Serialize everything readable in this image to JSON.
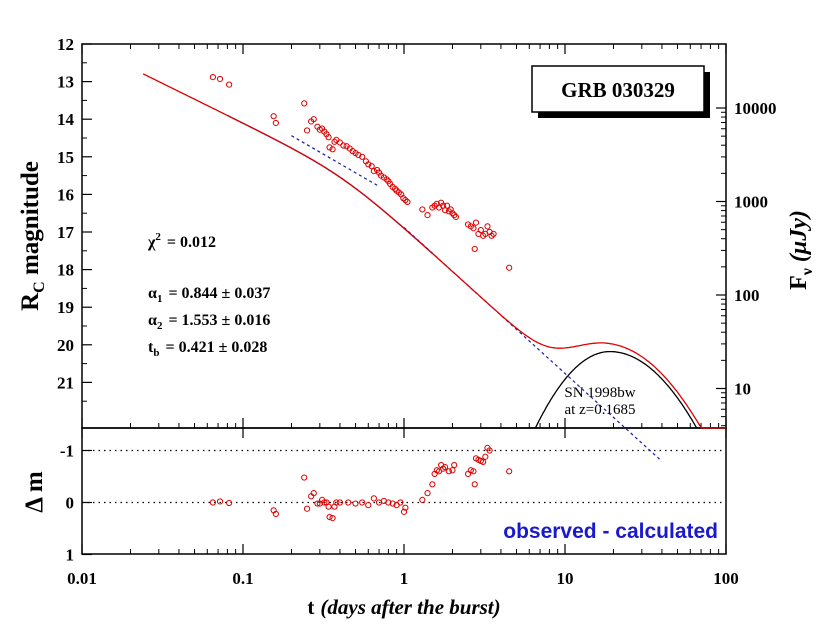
{
  "chart_data": {
    "type": "scatter",
    "title": "GRB 030329",
    "xlabel_main": "t",
    "xlabel_italic": "(days after the burst)",
    "x_ticks": [
      "0.01",
      "0.1",
      "1",
      "10",
      "100"
    ],
    "x_log": true,
    "xlim": [
      0.01,
      100
    ],
    "top_panel": {
      "ylabel_main": "R",
      "ylabel_sub": "C",
      "ylabel_rest": " magnitude",
      "ylim": [
        12,
        22
      ],
      "y_inverted": true,
      "y_ticks": [
        "12",
        "13",
        "14",
        "15",
        "16",
        "17",
        "18",
        "19",
        "20",
        "21"
      ],
      "right_label_main": "F",
      "right_label_sub": "ν",
      "right_label_rest": "(μJy)",
      "right_ticks": [
        "10000",
        "1000",
        "100",
        "10"
      ],
      "stats": {
        "chi2_sym": "χ",
        "chi2_sup": "2",
        "chi2_val": "= 0.012",
        "a1_sym": "α",
        "a1_sub": "1",
        "a1_val": "= 0.844 ± 0.037",
        "a2_sym": "α",
        "a2_sub": "2",
        "a2_val": "= 1.553 ± 0.016",
        "tb_sym": "t",
        "tb_sub": "b",
        "tb_val": "= 0.421 ± 0.028"
      },
      "sn_label_1": "SN 1998bw",
      "sn_label_2": "at z=0.1685",
      "observed_points": [
        [
          0.065,
          12.88
        ],
        [
          0.072,
          12.93
        ],
        [
          0.082,
          13.08
        ],
        [
          0.155,
          13.92
        ],
        [
          0.16,
          14.1
        ],
        [
          0.24,
          13.58
        ],
        [
          0.25,
          14.3
        ],
        [
          0.265,
          14.06
        ],
        [
          0.275,
          14.0
        ],
        [
          0.29,
          14.2
        ],
        [
          0.3,
          14.28
        ],
        [
          0.31,
          14.25
        ],
        [
          0.32,
          14.33
        ],
        [
          0.33,
          14.4
        ],
        [
          0.34,
          14.48
        ],
        [
          0.345,
          14.75
        ],
        [
          0.36,
          14.8
        ],
        [
          0.37,
          14.6
        ],
        [
          0.38,
          14.55
        ],
        [
          0.4,
          14.62
        ],
        [
          0.42,
          14.7
        ],
        [
          0.44,
          14.72
        ],
        [
          0.46,
          14.78
        ],
        [
          0.48,
          14.85
        ],
        [
          0.5,
          14.9
        ],
        [
          0.52,
          14.95
        ],
        [
          0.55,
          15.0
        ],
        [
          0.58,
          15.12
        ],
        [
          0.6,
          15.2
        ],
        [
          0.63,
          15.25
        ],
        [
          0.65,
          15.38
        ],
        [
          0.68,
          15.35
        ],
        [
          0.7,
          15.42
        ],
        [
          0.72,
          15.5
        ],
        [
          0.75,
          15.55
        ],
        [
          0.78,
          15.6
        ],
        [
          0.8,
          15.65
        ],
        [
          0.82,
          15.72
        ],
        [
          0.85,
          15.8
        ],
        [
          0.88,
          15.85
        ],
        [
          0.9,
          15.9
        ],
        [
          0.93,
          15.95
        ],
        [
          0.96,
          16.0
        ],
        [
          0.99,
          16.1
        ],
        [
          1.02,
          16.15
        ],
        [
          1.05,
          16.2
        ],
        [
          1.3,
          16.4
        ],
        [
          1.4,
          16.55
        ],
        [
          1.5,
          16.35
        ],
        [
          1.55,
          16.3
        ],
        [
          1.6,
          16.25
        ],
        [
          1.65,
          16.35
        ],
        [
          1.7,
          16.22
        ],
        [
          1.75,
          16.3
        ],
        [
          1.8,
          16.42
        ],
        [
          1.85,
          16.3
        ],
        [
          1.9,
          16.45
        ],
        [
          1.95,
          16.4
        ],
        [
          2.0,
          16.5
        ],
        [
          2.05,
          16.55
        ],
        [
          2.1,
          16.6
        ],
        [
          2.5,
          16.8
        ],
        [
          2.6,
          16.85
        ],
        [
          2.7,
          16.9
        ],
        [
          2.8,
          16.75
        ],
        [
          2.9,
          17.05
        ],
        [
          3.0,
          16.95
        ],
        [
          3.1,
          17.1
        ],
        [
          3.2,
          17.05
        ],
        [
          3.3,
          16.85
        ],
        [
          3.4,
          17.0
        ],
        [
          3.5,
          17.1
        ],
        [
          3.6,
          17.05
        ],
        [
          2.75,
          17.45
        ],
        [
          4.5,
          17.95
        ]
      ],
      "fit_curve_color": "#e00000",
      "line_color": "#1a1aa8",
      "sn_curve_color": "#000000"
    },
    "bottom_panel": {
      "ylabel": "Δ m",
      "ylim": [
        1.4,
        -1.4
      ],
      "y_ticks": [
        "-1",
        "0",
        "1"
      ],
      "dotted_levels": [
        -1,
        0
      ],
      "label": "observed - calculated",
      "label_color": "#1a1acc",
      "residuals": [
        [
          0.065,
          0.0
        ],
        [
          0.072,
          -0.02
        ],
        [
          0.082,
          0.01
        ],
        [
          0.155,
          0.15
        ],
        [
          0.16,
          0.22
        ],
        [
          0.24,
          -0.48
        ],
        [
          0.25,
          0.12
        ],
        [
          0.265,
          -0.12
        ],
        [
          0.275,
          -0.18
        ],
        [
          0.29,
          0.02
        ],
        [
          0.3,
          0.02
        ],
        [
          0.31,
          -0.05
        ],
        [
          0.32,
          0.0
        ],
        [
          0.33,
          0.0
        ],
        [
          0.34,
          0.08
        ],
        [
          0.345,
          0.28
        ],
        [
          0.36,
          0.3
        ],
        [
          0.37,
          0.08
        ],
        [
          0.38,
          0.0
        ],
        [
          0.4,
          0.0
        ],
        [
          0.45,
          0.0
        ],
        [
          0.5,
          0.02
        ],
        [
          0.55,
          0.0
        ],
        [
          0.6,
          0.05
        ],
        [
          0.65,
          -0.08
        ],
        [
          0.7,
          0.0
        ],
        [
          0.75,
          -0.03
        ],
        [
          0.8,
          0.0
        ],
        [
          0.85,
          0.02
        ],
        [
          0.9,
          0.05
        ],
        [
          0.95,
          0.0
        ],
        [
          1.0,
          0.18
        ],
        [
          1.02,
          0.1
        ],
        [
          1.3,
          -0.05
        ],
        [
          1.4,
          -0.18
        ],
        [
          1.5,
          -0.35
        ],
        [
          1.55,
          -0.55
        ],
        [
          1.6,
          -0.62
        ],
        [
          1.65,
          -0.6
        ],
        [
          1.7,
          -0.72
        ],
        [
          1.75,
          -0.65
        ],
        [
          1.8,
          -0.68
        ],
        [
          1.9,
          -0.6
        ],
        [
          2.0,
          -0.62
        ],
        [
          2.05,
          -0.72
        ],
        [
          2.5,
          -0.55
        ],
        [
          2.6,
          -0.62
        ],
        [
          2.7,
          -0.6
        ],
        [
          2.8,
          -0.85
        ],
        [
          2.9,
          -0.82
        ],
        [
          3.0,
          -0.8
        ],
        [
          3.1,
          -0.78
        ],
        [
          3.2,
          -0.88
        ],
        [
          3.3,
          -1.05
        ],
        [
          3.4,
          -1.0
        ],
        [
          2.75,
          -0.35
        ],
        [
          4.5,
          -0.6
        ]
      ]
    }
  }
}
